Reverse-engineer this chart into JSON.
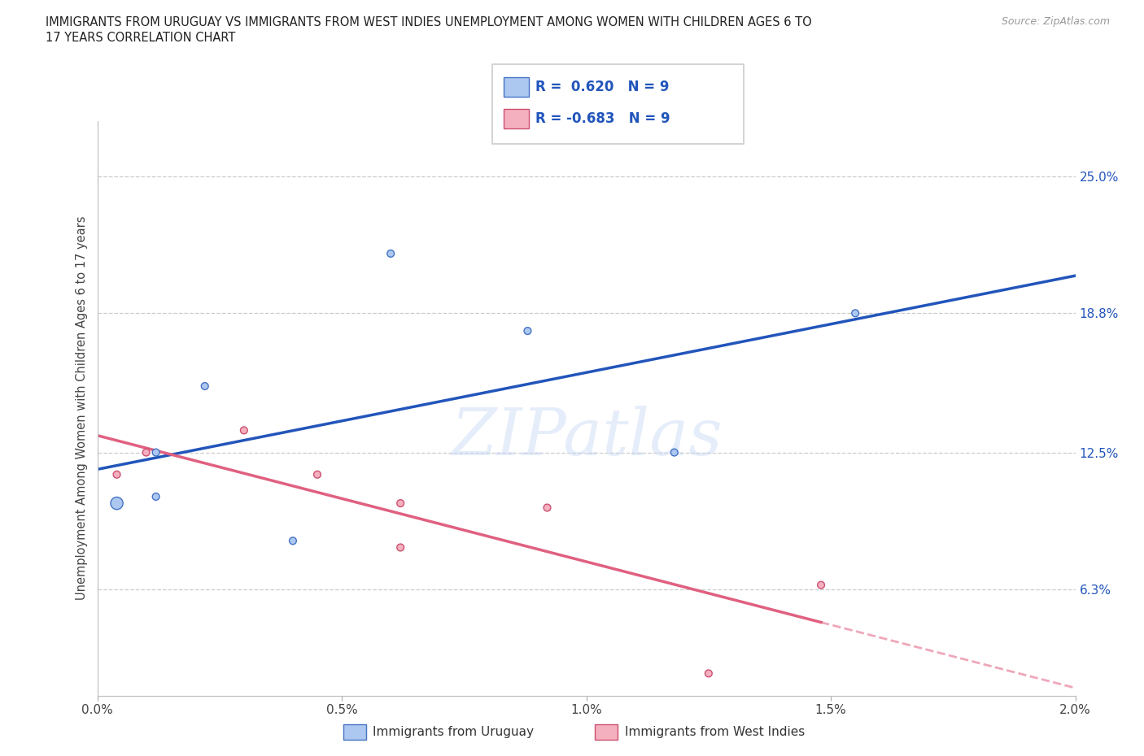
{
  "title_line1": "IMMIGRANTS FROM URUGUAY VS IMMIGRANTS FROM WEST INDIES UNEMPLOYMENT AMONG WOMEN WITH CHILDREN AGES 6 TO",
  "title_line2": "17 YEARS CORRELATION CHART",
  "source": "Source: ZipAtlas.com",
  "ylabel": "Unemployment Among Women with Children Ages 6 to 17 years",
  "xlabel_vals": [
    0.0,
    0.5,
    1.0,
    1.5,
    2.0
  ],
  "ylabel_vals": [
    6.3,
    12.5,
    18.8,
    25.0
  ],
  "xlim": [
    0.0,
    2.0
  ],
  "ylim": [
    1.5,
    27.5
  ],
  "uruguay_x": [
    0.04,
    0.12,
    0.12,
    0.22,
    0.4,
    0.6,
    0.88,
    1.18,
    1.55
  ],
  "uruguay_y": [
    10.2,
    12.5,
    10.5,
    15.5,
    8.5,
    21.5,
    18.0,
    12.5,
    18.8
  ],
  "uruguay_sizes": [
    120,
    40,
    40,
    40,
    40,
    40,
    40,
    40,
    40
  ],
  "west_indies_x": [
    0.04,
    0.1,
    0.3,
    0.45,
    0.62,
    0.62,
    0.92,
    1.25,
    1.48
  ],
  "west_indies_y": [
    11.5,
    12.5,
    13.5,
    11.5,
    10.2,
    8.2,
    10.0,
    2.5,
    6.5
  ],
  "west_indies_sizes": [
    40,
    40,
    40,
    40,
    40,
    40,
    40,
    40,
    40
  ],
  "uruguay_color": "#adc8f0",
  "uruguay_edge_color": "#4472c4",
  "west_indies_color": "#f5b0c0",
  "west_indies_edge_color": "#cc5070",
  "trend_blue": "#2255bb",
  "trend_pink": "#e06080",
  "R_uruguay": 0.62,
  "N_uruguay": 9,
  "R_west_indies": -0.683,
  "N_west_indies": 9,
  "watermark": "ZIPatlas",
  "background_color": "#ffffff",
  "grid_color": "#cccccc"
}
